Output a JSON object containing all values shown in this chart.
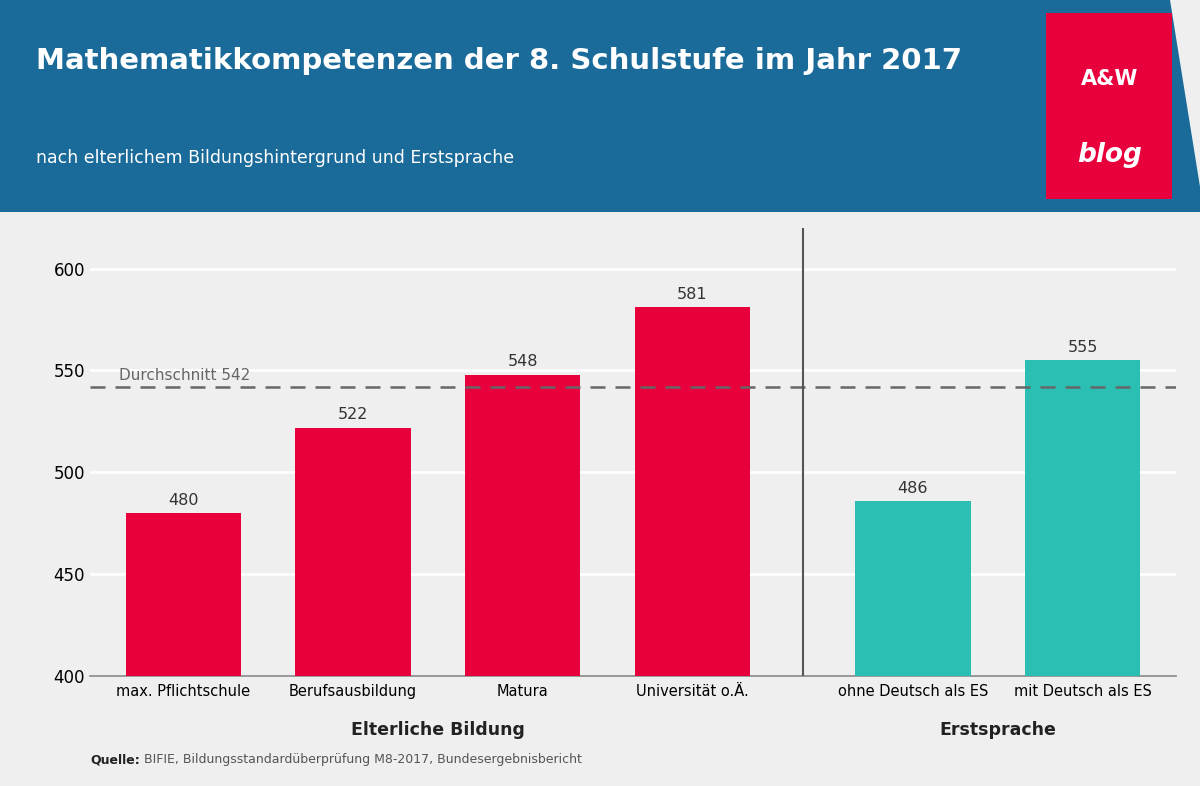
{
  "title": "Mathematikkompetenzen der 8. Schulstufe im Jahr 2017",
  "subtitle": "nach elterlichem Bildungshintergrund und Erstsprache",
  "source_bold": "Quelle:",
  "source_rest": " BIFIE, Bildungsstandardüberprüfung M8-2017, Bundesergebnisbericht",
  "categories": [
    "max. Pflichtschule",
    "Berufsausbildung",
    "Matura",
    "Universität o.Ä.",
    "ohne Deutsch als ES",
    "mit Deutsch als ES"
  ],
  "values": [
    480,
    522,
    548,
    581,
    486,
    555
  ],
  "colors": [
    "#e8003d",
    "#e8003d",
    "#e8003d",
    "#e8003d",
    "#2bbfb3",
    "#2bbfb3"
  ],
  "group_labels": [
    "Elterliche Bildung",
    "Erstsprache"
  ],
  "group1_indices": [
    0,
    1,
    2,
    3
  ],
  "group2_indices": [
    4,
    5
  ],
  "average_value": 542,
  "average_label": "Durchschnitt 542",
  "ylim_min": 400,
  "ylim_max": 620,
  "yticks": [
    400,
    450,
    500,
    550,
    600
  ],
  "header_bg_color": "#1a6b9a",
  "header_text_color": "#ffffff",
  "bar_label_color": "#333333",
  "avg_line_color": "#666666",
  "separator_color": "#555555",
  "background_color": "#efefef",
  "chart_bg_color": "#efefef",
  "blog_box_color": "#e8003d",
  "source_color": "#555555",
  "source_bold_color": "#222222",
  "grid_color": "#ffffff",
  "positions": [
    0,
    1,
    2,
    3,
    4.3,
    5.3
  ],
  "bar_width": 0.68
}
